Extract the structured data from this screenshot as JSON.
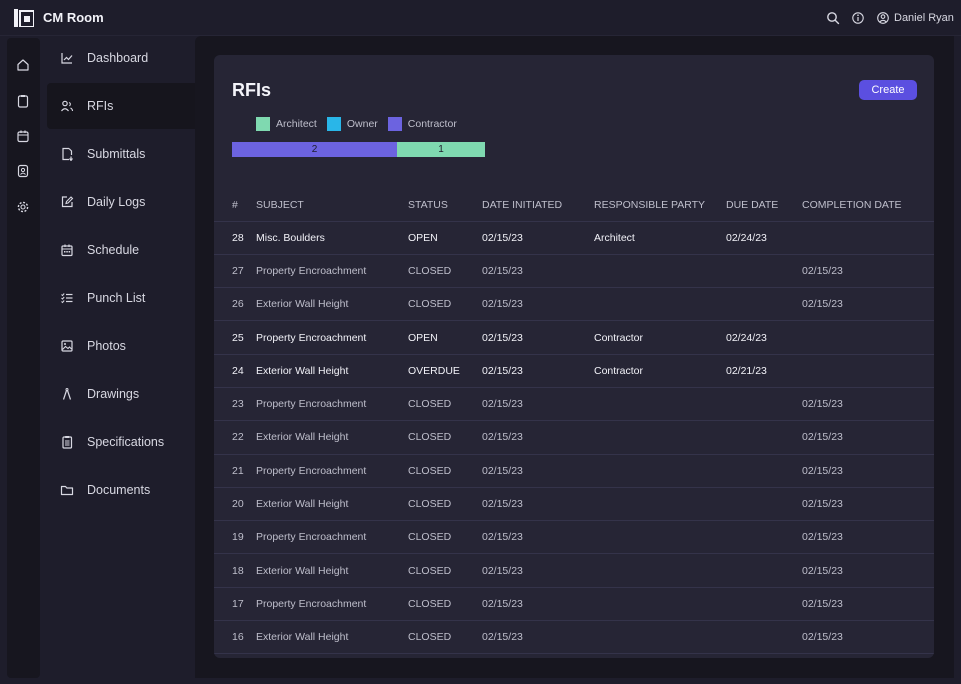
{
  "app": {
    "title": "CM Room"
  },
  "user": {
    "name": "Daniel Ryan"
  },
  "icons": {
    "logo": "cm-room-logo",
    "search": "search-icon",
    "info": "info-icon",
    "user": "user-circle-icon"
  },
  "rail": [
    "home-icon",
    "clipboard-icon",
    "calendar-icon",
    "contacts-icon",
    "gear-icon"
  ],
  "nav": {
    "items": [
      {
        "label": "Dashboard",
        "icon": "chart-icon"
      },
      {
        "label": "RFIs",
        "icon": "people-icon",
        "active": true
      },
      {
        "label": "Submittals",
        "icon": "document-upload-icon"
      },
      {
        "label": "Daily Logs",
        "icon": "edit-icon"
      },
      {
        "label": "Schedule",
        "icon": "calendar-icon"
      },
      {
        "label": "Punch List",
        "icon": "checklist-icon"
      },
      {
        "label": "Photos",
        "icon": "image-icon"
      },
      {
        "label": "Drawings",
        "icon": "compass-icon"
      },
      {
        "label": "Specifications",
        "icon": "clipboard-icon"
      },
      {
        "label": "Documents",
        "icon": "folder-icon"
      }
    ]
  },
  "page": {
    "title": "RFIs",
    "create_label": "Create"
  },
  "colors": {
    "architect": "#7fd9b0",
    "owner": "#29b6e8",
    "contractor": "#6c63e0",
    "accent": "#5b4fe0"
  },
  "legend": [
    {
      "label": "Architect",
      "color": "#7fd9b0"
    },
    {
      "label": "Owner",
      "color": "#29b6e8"
    },
    {
      "label": "Contractor",
      "color": "#6c63e0"
    }
  ],
  "distribution": [
    {
      "party": "Contractor",
      "count": "2",
      "color": "#6c63e0"
    },
    {
      "party": "Architect",
      "count": "1",
      "color": "#7fd9b0"
    }
  ],
  "table": {
    "columns": [
      "#",
      "SUBJECT",
      "STATUS",
      "DATE INITIATED",
      "RESPONSIBLE PARTY",
      "DUE DATE",
      "COMPLETION DATE"
    ],
    "rows": [
      {
        "num": "28",
        "subject": "Misc. Boulders",
        "status": "OPEN",
        "initiated": "02/15/23",
        "party": "Architect",
        "due": "02/24/23",
        "completed": "",
        "highlight": true
      },
      {
        "num": "27",
        "subject": "Property Encroachment",
        "status": "CLOSED",
        "initiated": "02/15/23",
        "party": "",
        "due": "",
        "completed": "02/15/23"
      },
      {
        "num": "26",
        "subject": "Exterior Wall Height",
        "status": "CLOSED",
        "initiated": "02/15/23",
        "party": "",
        "due": "",
        "completed": "02/15/23"
      },
      {
        "num": "25",
        "subject": "Property Encroachment",
        "status": "OPEN",
        "initiated": "02/15/23",
        "party": "Contractor",
        "due": "02/24/23",
        "completed": "",
        "highlight": true
      },
      {
        "num": "24",
        "subject": "Exterior Wall Height",
        "status": "OVERDUE",
        "initiated": "02/15/23",
        "party": "Contractor",
        "due": "02/21/23",
        "completed": "",
        "highlight": true
      },
      {
        "num": "23",
        "subject": "Property Encroachment",
        "status": "CLOSED",
        "initiated": "02/15/23",
        "party": "",
        "due": "",
        "completed": "02/15/23"
      },
      {
        "num": "22",
        "subject": "Exterior Wall Height",
        "status": "CLOSED",
        "initiated": "02/15/23",
        "party": "",
        "due": "",
        "completed": "02/15/23"
      },
      {
        "num": "21",
        "subject": "Property Encroachment",
        "status": "CLOSED",
        "initiated": "02/15/23",
        "party": "",
        "due": "",
        "completed": "02/15/23"
      },
      {
        "num": "20",
        "subject": "Exterior Wall Height",
        "status": "CLOSED",
        "initiated": "02/15/23",
        "party": "",
        "due": "",
        "completed": "02/15/23"
      },
      {
        "num": "19",
        "subject": "Property Encroachment",
        "status": "CLOSED",
        "initiated": "02/15/23",
        "party": "",
        "due": "",
        "completed": "02/15/23"
      },
      {
        "num": "18",
        "subject": "Exterior Wall Height",
        "status": "CLOSED",
        "initiated": "02/15/23",
        "party": "",
        "due": "",
        "completed": "02/15/23"
      },
      {
        "num": "17",
        "subject": "Property Encroachment",
        "status": "CLOSED",
        "initiated": "02/15/23",
        "party": "",
        "due": "",
        "completed": "02/15/23"
      },
      {
        "num": "16",
        "subject": "Exterior Wall Height",
        "status": "CLOSED",
        "initiated": "02/15/23",
        "party": "",
        "due": "",
        "completed": "02/15/23"
      }
    ]
  }
}
